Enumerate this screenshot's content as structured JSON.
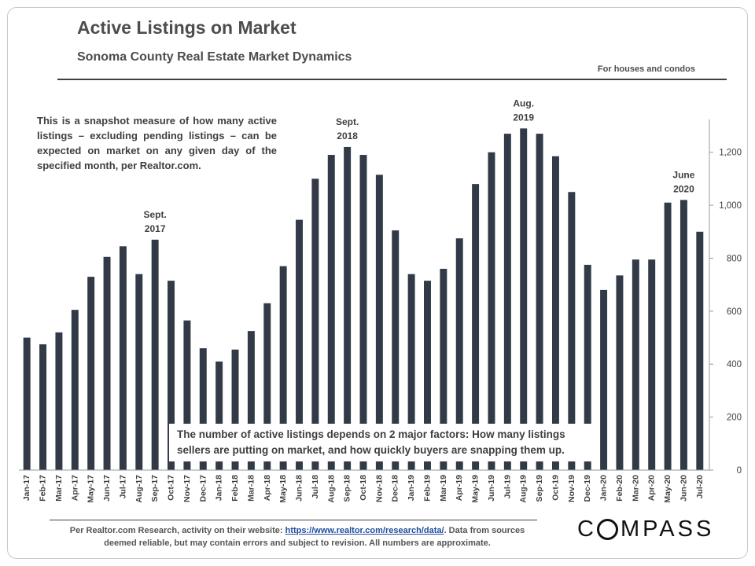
{
  "header": {
    "title": "Active Listings on Market",
    "subtitle": "Sonoma County Real Estate Market Dynamics",
    "note": "For houses and condos"
  },
  "description": "This is a snapshot measure of how many active listings – excluding pending listings – can be expected on market on any given day of the specified month, per Realtor.com.",
  "callout": "The number of active listings depends on 2 major factors: How many listings sellers are putting on market, and how quickly buyers are snapping them up.",
  "footer": {
    "source_prefix": "Per Realtor.com Research, activity on their website: ",
    "source_link": "https://www.realtor.com/research/data/",
    "source_suffix": ". Data from sources deemed reliable, but may contain errors and subject to revision. All numbers are approximate.",
    "brand_pre": "C",
    "brand_post": "MPASS"
  },
  "colors": {
    "bar": "#323a48",
    "axis": "#9a9a9a",
    "text": "#4a4a4a"
  },
  "chart_data": {
    "type": "bar",
    "categories": [
      "Jan-17",
      "Feb-17",
      "Mar-17",
      "Apr-17",
      "May-17",
      "Jun-17",
      "Jul-17",
      "Aug-17",
      "Sep-17",
      "Oct-17",
      "Nov-17",
      "Dec-17",
      "Jan-18",
      "Feb-18",
      "Mar-18",
      "Apr-18",
      "May-18",
      "Jun-18",
      "Jul-18",
      "Aug-18",
      "Sep-18",
      "Oct-18",
      "Nov-18",
      "Dec-18",
      "Jan-19",
      "Feb-19",
      "Mar-19",
      "Apr-19",
      "May-19",
      "Jun-19",
      "Jul-19",
      "Aug-19",
      "Sep-19",
      "Oct-19",
      "Nov-19",
      "Dec-19",
      "Jan-20",
      "Feb-20",
      "Mar-20",
      "Apr-20",
      "May-20",
      "Jun-20",
      "Jul-20"
    ],
    "values": [
      500,
      475,
      520,
      605,
      730,
      805,
      845,
      740,
      870,
      715,
      565,
      460,
      410,
      455,
      525,
      630,
      770,
      945,
      1100,
      1190,
      1220,
      1190,
      1115,
      905,
      740,
      715,
      760,
      875,
      1080,
      1200,
      1270,
      1290,
      1270,
      1185,
      1050,
      775,
      680,
      735,
      795,
      795,
      1010,
      1020,
      900
    ],
    "ylim": [
      0,
      1300
    ],
    "yticks": [
      0,
      200,
      400,
      600,
      800,
      1000,
      1200
    ],
    "ytick_labels": [
      "0",
      "200",
      "400",
      "600",
      "800",
      "1,000",
      "1,200"
    ],
    "grid": false,
    "annotations": [
      {
        "index": 8,
        "lines": [
          "Sept.",
          "2017"
        ]
      },
      {
        "index": 20,
        "lines": [
          "Sept.",
          "2018"
        ]
      },
      {
        "index": 31,
        "lines": [
          "Aug.",
          "2019"
        ]
      },
      {
        "index": 41,
        "lines": [
          "June",
          "2020"
        ]
      }
    ]
  }
}
